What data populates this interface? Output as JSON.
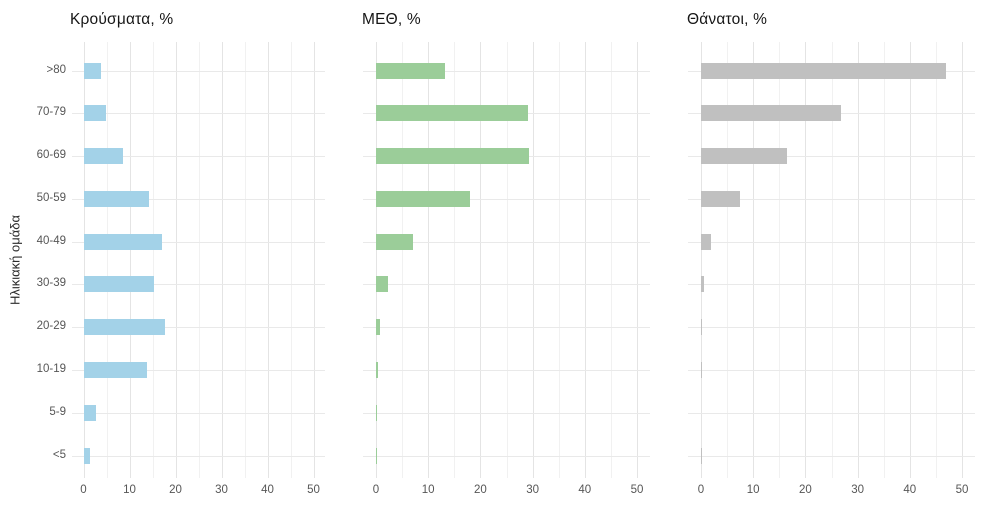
{
  "figure": {
    "background": "#ffffff"
  },
  "chart_data": {
    "type": "bar",
    "orientation": "horizontal",
    "facets": 3,
    "categories": [
      ">80",
      "70-79",
      "60-69",
      "50-59",
      "40-49",
      "30-39",
      "20-29",
      "10-19",
      "5-9",
      "<5"
    ],
    "ylabel": "Ηλικιακή ομάδα",
    "xlabel": "",
    "x_ticks": [
      0,
      10,
      20,
      30,
      40,
      50
    ],
    "x_minor_ticks": [
      5,
      15,
      25,
      35,
      45
    ],
    "xlim": [
      -2.5,
      52.5
    ],
    "grid": "major-and-minor, light gray on white",
    "legend": "none",
    "panels": [
      {
        "title": "Κρούσματα, %",
        "color": "#a3d2e8",
        "values": [
          3.7,
          4.8,
          8.6,
          14.3,
          17.0,
          15.4,
          17.6,
          13.9,
          2.7,
          1.5
        ]
      },
      {
        "title": "ΜΕΘ, %",
        "color": "#9bcd99",
        "values": [
          13.2,
          29.1,
          29.4,
          18.1,
          7.1,
          2.2,
          0.8,
          0.3,
          0.15,
          0.25
        ]
      },
      {
        "title": "Θάνατοι, %",
        "color": "#c0c0c0",
        "values": [
          47.0,
          26.9,
          16.5,
          7.4,
          2.0,
          0.6,
          0.15,
          0.2,
          0.0,
          0.1
        ]
      }
    ]
  }
}
